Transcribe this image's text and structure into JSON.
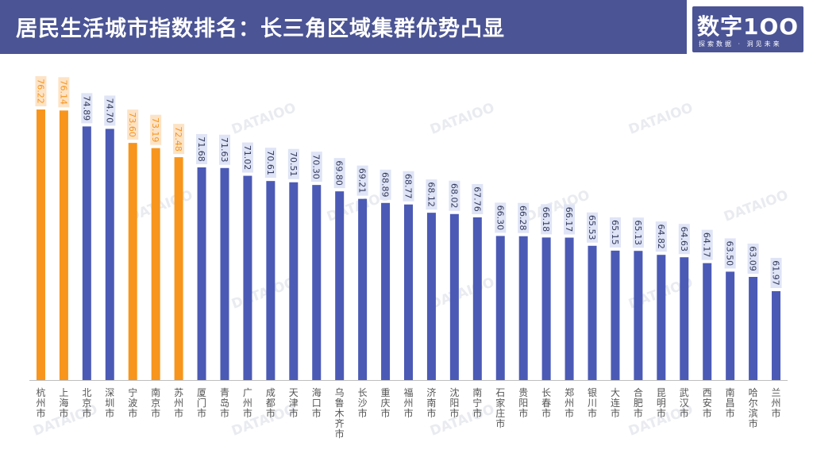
{
  "title": "居民生活城市指数排名：长三角区域集群优势凸显",
  "logo": {
    "main": "数字1OO",
    "sub": "探索数据 · 洞见未来"
  },
  "watermark_text": "DATAIOO",
  "colors": {
    "highlight": "#f7951d",
    "normal": "#4b5ab5",
    "header": "#4b5494"
  },
  "chart_data": {
    "type": "bar",
    "title": "居民生活城市指数排名：长三角区域集群优势凸显",
    "xlabel": "",
    "ylabel": "",
    "ylim": [
      55,
      78
    ],
    "grid": false,
    "categories": [
      "杭州市",
      "上海市",
      "北京市",
      "深圳市",
      "宁波市",
      "南京市",
      "苏州市",
      "厦门市",
      "青岛市",
      "广州市",
      "成都市",
      "天津市",
      "海口市",
      "乌鲁木齐市",
      "长沙市",
      "重庆市",
      "福州市",
      "济南市",
      "沈阳市",
      "南宁市",
      "石家庄市",
      "贵阳市",
      "长春市",
      "郑州市",
      "银川市",
      "大连市",
      "合肥市",
      "昆明市",
      "武汉市",
      "西安市",
      "南昌市",
      "哈尔滨市",
      "兰州市"
    ],
    "values": [
      76.22,
      76.14,
      74.89,
      74.7,
      73.6,
      73.19,
      72.48,
      71.68,
      71.63,
      71.02,
      70.61,
      70.51,
      70.3,
      69.8,
      69.21,
      68.89,
      68.77,
      68.12,
      68.02,
      67.76,
      66.3,
      66.28,
      66.18,
      66.17,
      65.53,
      65.15,
      65.13,
      64.82,
      64.63,
      64.17,
      63.5,
      63.09,
      61.97
    ],
    "value_labels": [
      "76.22",
      "76.14",
      "74.89",
      "74.70",
      "73.60",
      "73.19",
      "72.48",
      "71.68",
      "71.63",
      "71.02",
      "70.61",
      "70.51",
      "70.30",
      "69.80",
      "69.21",
      "68.89",
      "68.77",
      "68.12",
      "68.02",
      "67.76",
      "66.30",
      "66.28",
      "66.18",
      "66.17",
      "65.53",
      "65.15",
      "65.13",
      "64.82",
      "64.63",
      "64.17",
      "63.50",
      "63.09",
      "61.97"
    ],
    "highlight": [
      true,
      true,
      false,
      false,
      true,
      true,
      true,
      false,
      false,
      false,
      false,
      false,
      false,
      false,
      false,
      false,
      false,
      false,
      false,
      false,
      false,
      false,
      false,
      false,
      false,
      false,
      false,
      false,
      false,
      false,
      false,
      false,
      false
    ]
  }
}
